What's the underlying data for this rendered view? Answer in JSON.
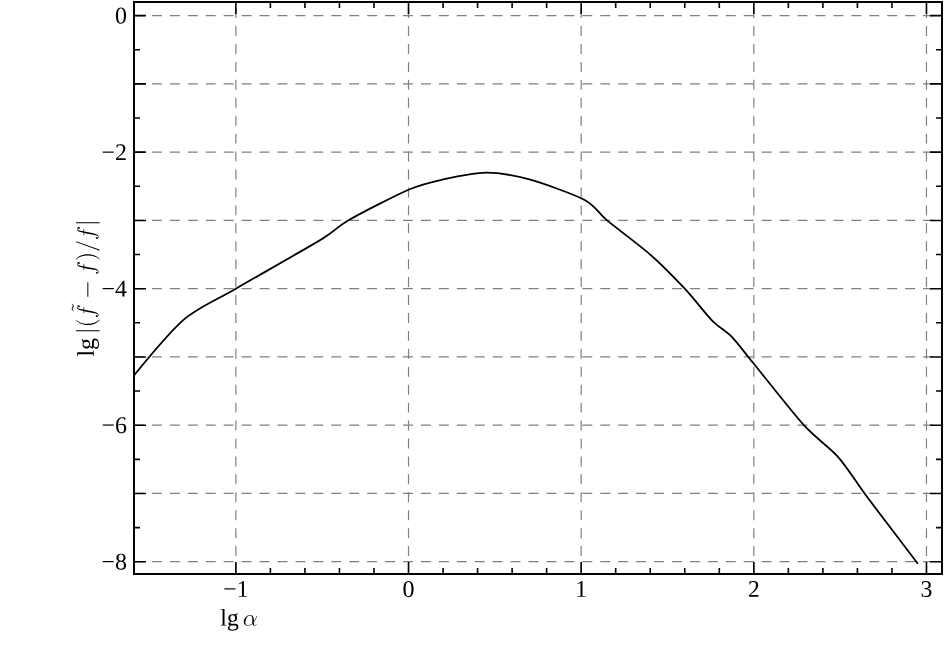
{
  "chart_data": {
    "type": "line",
    "xlabel": "\\lg \\alpha",
    "ylabel": "\\lg|(\\tilde{f}-f)/f|",
    "x": [
      -1.59,
      -1.3,
      -1.0,
      -0.5,
      -0.35,
      0.0,
      0.2,
      0.45,
      0.7,
      1.02,
      1.15,
      1.4,
      1.6,
      1.76,
      1.87,
      2.0,
      2.29,
      2.49,
      2.65,
      2.95
    ],
    "series": [
      {
        "color": "#000000",
        "values": [
          -5.27,
          -4.45,
          -4.0,
          -3.27,
          -3.0,
          -2.55,
          -2.4,
          -2.3,
          -2.4,
          -2.7,
          -3.0,
          -3.5,
          -4.0,
          -4.47,
          -4.7,
          -5.1,
          -6.0,
          -6.47,
          -7.03,
          -8.03
        ]
      }
    ],
    "xlim": [
      -1.59,
      3.09
    ],
    "ylim": [
      -8.18,
      0.2
    ],
    "xticks": [
      {
        "value": -1,
        "label": "−1"
      },
      0,
      1,
      2,
      3
    ],
    "yticks": [
      0,
      {
        "value": -1,
        "label": null
      },
      {
        "value": -2,
        "label": "−2"
      },
      {
        "value": -3,
        "label": null
      },
      {
        "value": -4,
        "label": "−4"
      },
      {
        "value": -5,
        "label": null
      },
      {
        "value": -6,
        "label": "−6"
      },
      {
        "value": -7,
        "label": null
      },
      {
        "value": -8,
        "label": "−8"
      }
    ],
    "grid": true,
    "marker": "none",
    "line_style": "solid"
  }
}
